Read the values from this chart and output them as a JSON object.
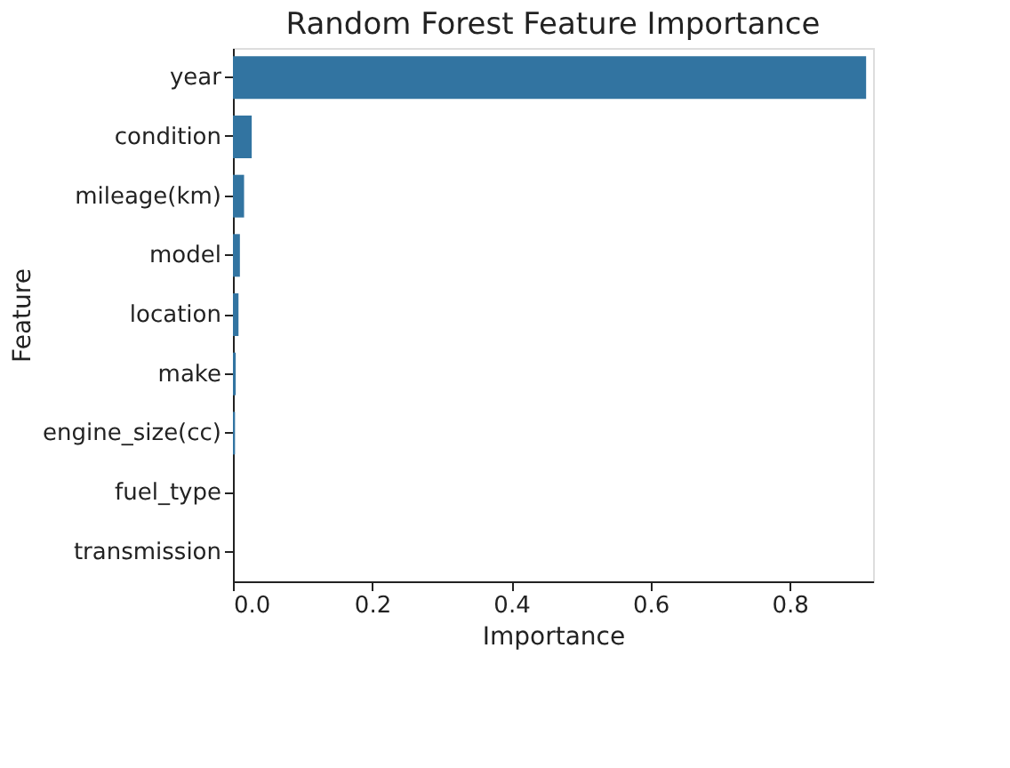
{
  "chart_data": {
    "type": "bar",
    "orientation": "horizontal",
    "title": "Random Forest Feature Importance",
    "xlabel": "Importance",
    "ylabel": "Feature",
    "categories": [
      "year",
      "condition",
      "mileage(km)",
      "model",
      "location",
      "make",
      "engine_size(cc)",
      "fuel_type",
      "transmission"
    ],
    "values": [
      0.91,
      0.027,
      0.016,
      0.01,
      0.008,
      0.004,
      0.003,
      null,
      null
    ],
    "color": "#3274a1",
    "xlim": [
      0,
      0.92
    ],
    "xticks": [
      {
        "value": 0,
        "label": "0.0"
      },
      0.2,
      0.4,
      0.6,
      0.8
    ],
    "grid": false
  }
}
